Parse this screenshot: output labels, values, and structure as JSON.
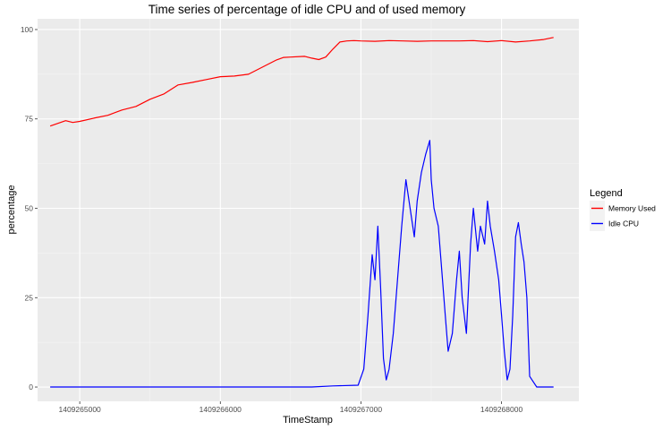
{
  "chart_data": {
    "type": "line",
    "title": "Time series of percentage of idle CPU and of used memory",
    "xlabel": "TimeStamp",
    "ylabel": "percentage",
    "xlim": [
      1409264700,
      1409268550
    ],
    "ylim": [
      -4,
      103
    ],
    "x_ticks": [
      1409265000,
      1409266000,
      1409267000,
      1409268000
    ],
    "y_ticks": [
      0,
      25,
      50,
      75,
      100
    ],
    "x_tick_labels": [
      "1409265000",
      "1409266000",
      "1409267000",
      "1409268000"
    ],
    "y_tick_labels": [
      "0",
      "25",
      "50",
      "75",
      "100"
    ],
    "grid": true,
    "legend": {
      "title": "Legend",
      "position": "right",
      "entries": [
        {
          "label": "Memory Used",
          "color": "#ff0000"
        },
        {
          "label": "Idle CPU",
          "color": "#0000ff"
        }
      ]
    },
    "series": [
      {
        "name": "Memory Used",
        "color": "#ff0000",
        "x": [
          1409264790,
          1409264900,
          1409264950,
          1409265000,
          1409265100,
          1409265200,
          1409265300,
          1409265400,
          1409265500,
          1409265600,
          1409265700,
          1409265800,
          1409265900,
          1409266000,
          1409266100,
          1409266200,
          1409266300,
          1409266400,
          1409266450,
          1409266500,
          1409266600,
          1409266650,
          1409266700,
          1409266750,
          1409266800,
          1409266850,
          1409266900,
          1409266950,
          1409267000,
          1409267100,
          1409267200,
          1409267300,
          1409267400,
          1409267500,
          1409267600,
          1409267700,
          1409267800,
          1409267900,
          1409268000,
          1409268100,
          1409268200,
          1409268300,
          1409268370
        ],
        "values": [
          73,
          74.5,
          74,
          74.3,
          75.2,
          76,
          77.5,
          78.5,
          80.5,
          82,
          84.5,
          85.2,
          86,
          86.8,
          87,
          87.5,
          89.5,
          91.5,
          92.2,
          92.3,
          92.5,
          92,
          91.6,
          92.3,
          94.5,
          96.5,
          96.8,
          96.9,
          96.8,
          96.7,
          96.9,
          96.8,
          96.7,
          96.8,
          96.8,
          96.8,
          96.9,
          96.6,
          96.9,
          96.5,
          96.8,
          97.2,
          97.8
        ]
      },
      {
        "name": "Idle CPU",
        "color": "#0000ff",
        "x": [
          1409264790,
          1409266650,
          1409266800,
          1409266980,
          1409267020,
          1409267050,
          1409267080,
          1409267100,
          1409267120,
          1409267140,
          1409267160,
          1409267180,
          1409267200,
          1409267230,
          1409267260,
          1409267290,
          1409267320,
          1409267350,
          1409267380,
          1409267400,
          1409267430,
          1409267460,
          1409267490,
          1409267500,
          1409267520,
          1409267550,
          1409267580,
          1409267600,
          1409267620,
          1409267650,
          1409267680,
          1409267700,
          1409267720,
          1409267750,
          1409267780,
          1409267800,
          1409267830,
          1409267850,
          1409267880,
          1409267900,
          1409267920,
          1409267950,
          1409267980,
          1409268000,
          1409268020,
          1409268040,
          1409268060,
          1409268080,
          1409268100,
          1409268120,
          1409268140,
          1409268160,
          1409268180,
          1409268200,
          1409268250,
          1409268370
        ],
        "values": [
          0,
          0,
          0.3,
          0.5,
          5,
          20,
          37,
          30,
          45,
          28,
          8,
          2,
          5,
          15,
          30,
          45,
          58,
          50,
          42,
          52,
          60,
          65,
          69,
          58,
          50,
          45,
          30,
          20,
          10,
          15,
          30,
          38,
          25,
          15,
          40,
          50,
          38,
          45,
          40,
          52,
          45,
          38,
          30,
          20,
          10,
          2,
          5,
          20,
          42,
          46,
          40,
          35,
          25,
          3,
          0,
          0
        ]
      }
    ]
  }
}
